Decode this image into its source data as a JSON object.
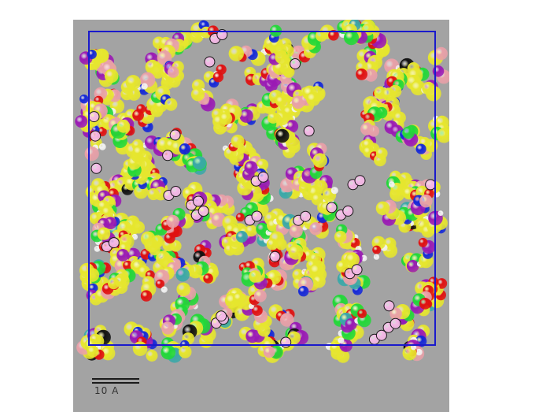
{
  "viewer": {
    "background_color": "#a3a3a3",
    "box_color": "#1a1acc",
    "scale_bar_color": "#1a1a1a",
    "scale_bar_label": "10 A"
  },
  "atom_colors": {
    "carbon": "#e6e62e",
    "oxygen": "#e01010",
    "nitrogen": "#1428d8",
    "hydrogen": "#f2f2f2",
    "green": "#22d838",
    "purple": "#9a1ab4",
    "pink": "#e8a0a8",
    "black": "#111111",
    "teal": "#3aa8a8",
    "water": "#f4b8e6"
  }
}
